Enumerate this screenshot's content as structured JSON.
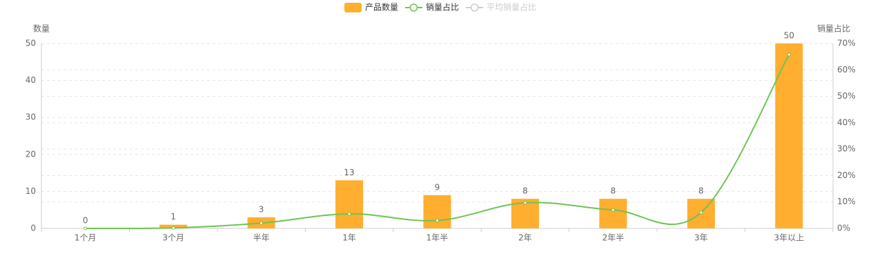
{
  "chart_data": {
    "type": "bar-line",
    "categories": [
      "1个月",
      "3个月",
      "半年",
      "1年",
      "1年半",
      "2年",
      "2年半",
      "3年",
      "3年以上"
    ],
    "series": [
      {
        "name": "产品数量",
        "type": "bar",
        "color": "#ffae2f",
        "values": [
          0,
          1,
          3,
          13,
          9,
          8,
          8,
          8,
          50
        ]
      },
      {
        "name": "销量占比",
        "type": "line",
        "axis": "y2",
        "color": "#6cc552",
        "values": [
          0,
          0.2,
          2,
          5.5,
          3,
          9.7,
          7,
          6,
          65.8
        ]
      },
      {
        "name": "平均销量占比",
        "type": "line",
        "axis": "y2",
        "color": "#cccccc",
        "hidden": true
      }
    ],
    "ylabel": "数量",
    "y2label": "销量占比",
    "ylim": [
      0,
      50
    ],
    "yticks": [
      0,
      10,
      20,
      30,
      40,
      50
    ],
    "y2lim": [
      0,
      70
    ],
    "y2ticks": [
      {
        "value": 0,
        "label": "0%"
      },
      {
        "value": 10,
        "label": "10%"
      },
      {
        "value": 20,
        "label": "20%"
      },
      {
        "value": 30,
        "label": "30%"
      },
      {
        "value": 40,
        "label": "40%"
      },
      {
        "value": 50,
        "label": "50%"
      },
      {
        "value": 60,
        "label": "60%"
      },
      {
        "value": 70,
        "label": "70%"
      }
    ],
    "grid": true,
    "legend": "top"
  }
}
